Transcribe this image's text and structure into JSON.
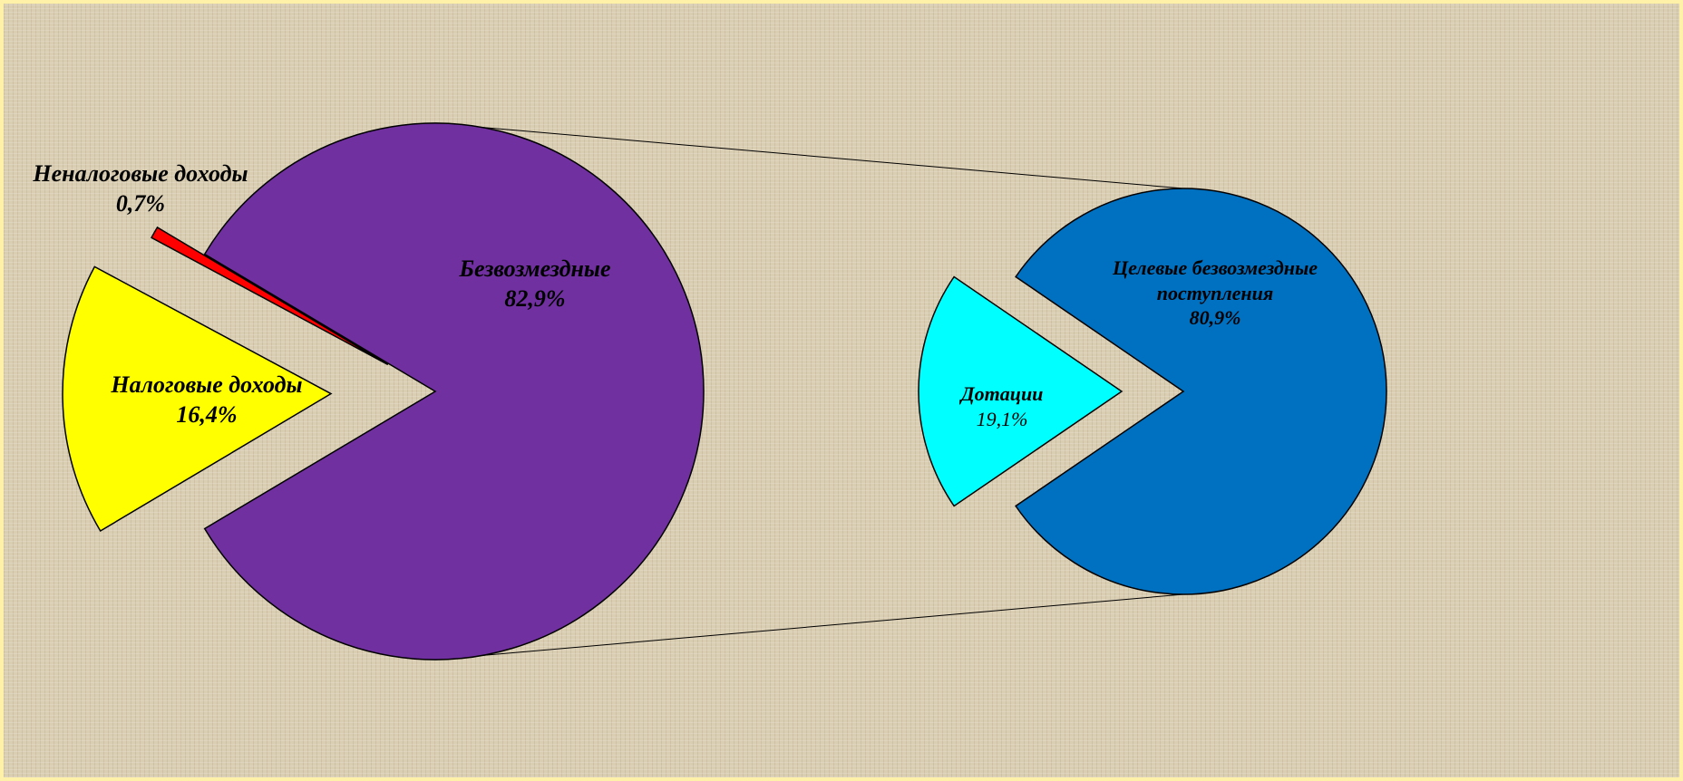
{
  "chart_data": [
    {
      "type": "pie",
      "categories": [
        "Безвозмездные",
        "Налоговые доходы",
        "Неналоговые доходы"
      ],
      "values": [
        82.9,
        16.4,
        0.7
      ],
      "value_labels": [
        "82,9%",
        "16,4%",
        "0,7%"
      ],
      "colors": [
        "#7030a0",
        "#ffff00",
        "#ff0000"
      ]
    },
    {
      "type": "pie",
      "categories": [
        "Целевые безвозмездные поступления",
        "Дотации"
      ],
      "values": [
        80.9,
        19.1
      ],
      "value_labels": [
        "80,9%",
        "19,1%"
      ],
      "colors": [
        "#0070c0",
        "#00ffff"
      ]
    }
  ]
}
